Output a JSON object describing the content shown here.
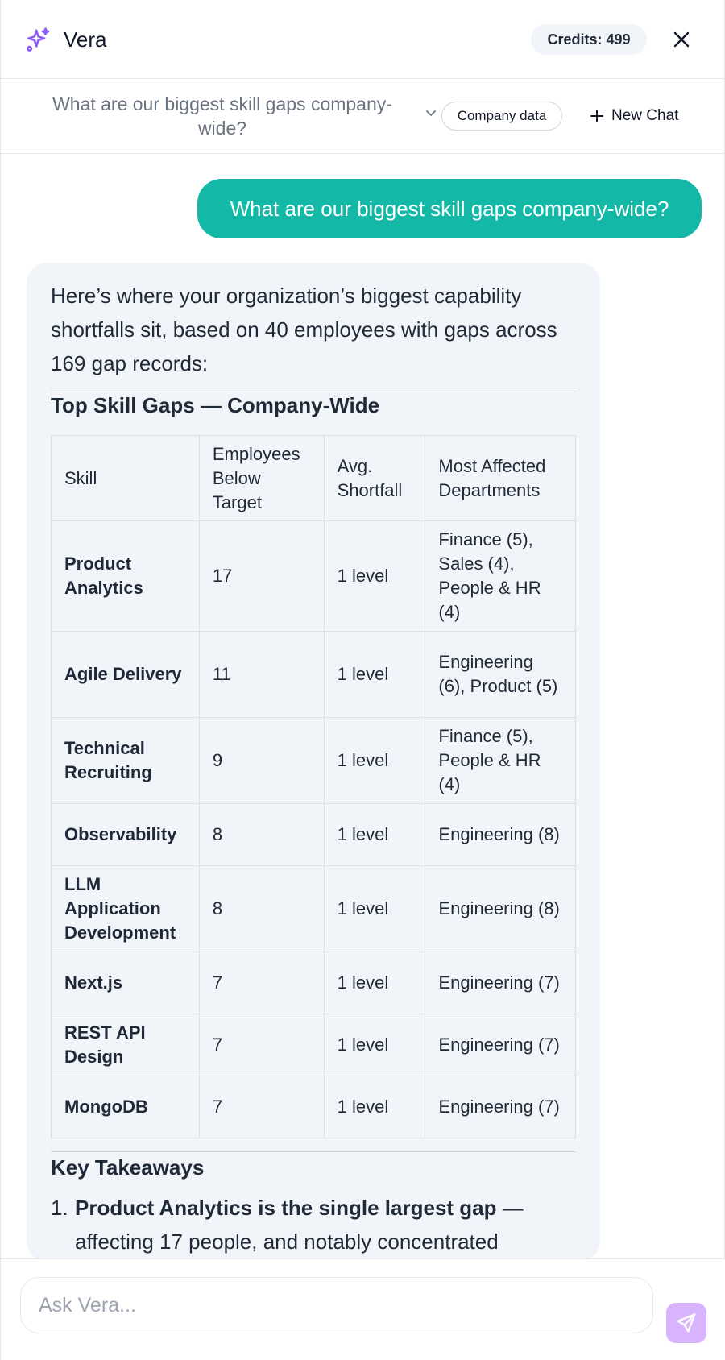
{
  "header": {
    "app_name": "Vera",
    "credits_label": "Credits: 499",
    "close_icon": "close-icon"
  },
  "subheader": {
    "conversation_title": "What are our biggest skill gaps company-wide?",
    "data_source": "Company data",
    "new_chat_label": "New Chat"
  },
  "messages": {
    "user_text": "What are our biggest skill gaps company-wide?",
    "assistant": {
      "intro": "Here’s where your organization’s biggest capability shortfalls sit, based on 40 employees with gaps across 169 gap records:",
      "table_title": "Top Skill Gaps — Company-Wide",
      "columns": [
        "Skill",
        "Employees Below Target",
        "Avg. Shortfall",
        "Most Affected Departments"
      ],
      "rows": [
        {
          "skill": "Product Analytics",
          "employees": "17",
          "shortfall": "1 level",
          "departments": "Finance (5), Sales (4), People & HR (4)"
        },
        {
          "skill": "Agile Delivery",
          "employees": "11",
          "shortfall": "1 level",
          "departments": "Engineering (6), Product (5)"
        },
        {
          "skill": "Technical Recruiting",
          "employees": "9",
          "shortfall": "1 level",
          "departments": "Finance (5), People & HR (4)"
        },
        {
          "skill": "Observability",
          "employees": "8",
          "shortfall": "1 level",
          "departments": "Engineering (8)"
        },
        {
          "skill": "LLM Application Development",
          "employees": "8",
          "shortfall": "1 level",
          "departments": "Engineering (8)"
        },
        {
          "skill": "Next.js",
          "employees": "7",
          "shortfall": "1 level",
          "departments": "Engineering (7)"
        },
        {
          "skill": "REST API Design",
          "employees": "7",
          "shortfall": "1 level",
          "departments": "Engineering (7)"
        },
        {
          "skill": "MongoDB",
          "employees": "7",
          "shortfall": "1 level",
          "departments": "Engineering (7)"
        }
      ],
      "takeaways_title": "Key Takeaways",
      "takeaways": [
        {
          "number": "1.",
          "bold": "Product Analytics is the single largest gap",
          "rest": " — affecting 17 people, and notably concentrated"
        }
      ]
    }
  },
  "composer": {
    "placeholder": "Ask Vera...",
    "value": ""
  },
  "colors": {
    "accent_teal": "#14b8a6",
    "brand_purple": "#8b5cf6",
    "send_button": "#d8b4fe"
  }
}
